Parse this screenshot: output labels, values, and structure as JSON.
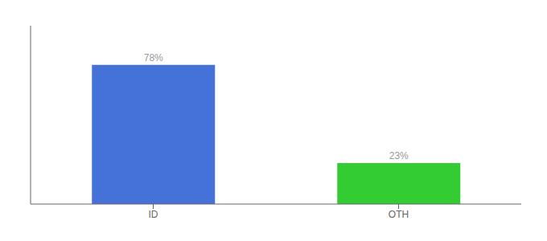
{
  "chart_data": {
    "type": "bar",
    "categories": [
      "ID",
      "OTH"
    ],
    "values": [
      78,
      23
    ],
    "value_labels": [
      "78%",
      "23%"
    ],
    "colors": [
      "#4472D9",
      "#33CC33"
    ],
    "ylim": [
      0,
      100
    ],
    "data_labels": true,
    "tick_labels": "x",
    "grid": false
  }
}
